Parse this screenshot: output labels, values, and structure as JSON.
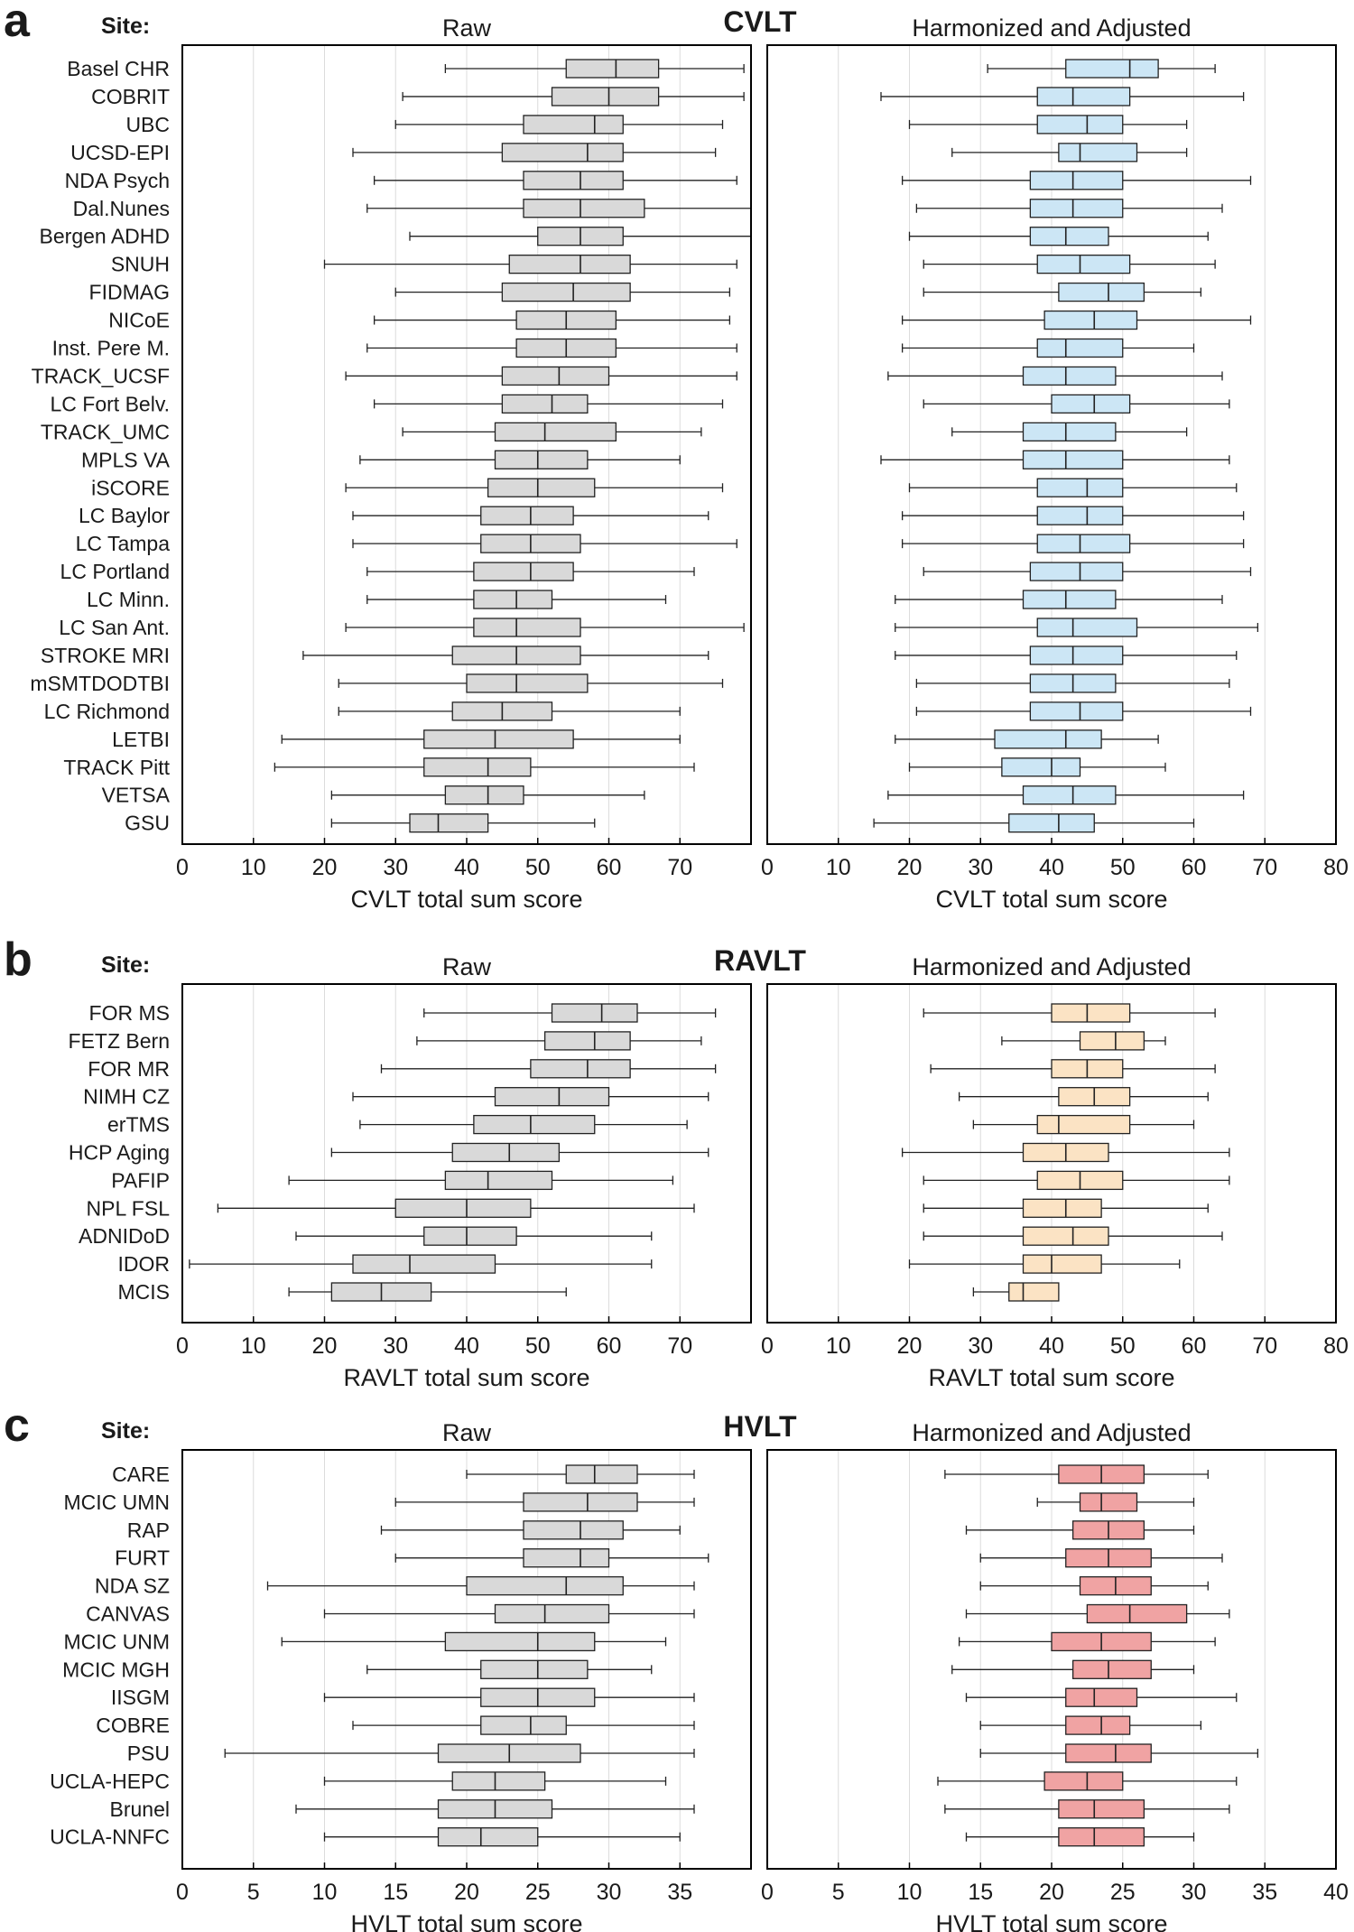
{
  "figure_colors": {
    "raw_fill": "#d9d9d9",
    "cvlt_fill": "#cce6f5",
    "ravlt_fill": "#fbe3c4",
    "hvlt_fill": "#f0a3a3",
    "cvlt_title": "#3b5bb5",
    "ravlt_title": "#f08c24",
    "hvlt_title": "#e03535"
  },
  "chart_data": [
    {
      "type": "boxplot",
      "panel_letter": "a",
      "test_title": "CVLT",
      "site_header": "Site:",
      "left_title": "Raw",
      "right_title": "Harmonized and Adjusted",
      "xlabel": "CVLT total sum score",
      "left_xlim": [
        0,
        80
      ],
      "left_ticks": [
        "0",
        "10",
        "20",
        "30",
        "40",
        "50",
        "60",
        "70"
      ],
      "right_xlim": [
        0,
        80
      ],
      "right_ticks": [
        "0",
        "10",
        "20",
        "30",
        "40",
        "50",
        "60",
        "70",
        "80"
      ],
      "sites": [
        "Basel CHR",
        "COBRIT",
        "UBC",
        "UCSD-EPI",
        "NDA Psych",
        "Dal.Nunes",
        "Bergen ADHD",
        "SNUH",
        "FIDMAG",
        "NICoE",
        "Inst. Pere M.",
        "TRACK_UCSF",
        "LC Fort Belv.",
        "TRACK_UMC",
        "MPLS VA",
        "iSCORE",
        "LC Baylor",
        "LC Tampa",
        "LC Portland",
        "LC Minn.",
        "LC San Ant.",
        "STROKE MRI",
        "mSMTDODTBI",
        "LC Richmond",
        "LETBI",
        "TRACK Pitt",
        "VETSA",
        "GSU"
      ],
      "raw": [
        [
          37,
          54,
          61,
          67,
          79
        ],
        [
          31,
          52,
          60,
          67,
          79
        ],
        [
          30,
          48,
          58,
          62,
          76
        ],
        [
          24,
          45,
          57,
          62,
          75
        ],
        [
          27,
          48,
          56,
          62,
          78
        ],
        [
          26,
          48,
          56,
          65,
          80
        ],
        [
          32,
          50,
          56,
          62,
          80
        ],
        [
          20,
          46,
          56,
          63,
          78
        ],
        [
          30,
          45,
          55,
          63,
          77
        ],
        [
          27,
          47,
          54,
          61,
          77
        ],
        [
          26,
          47,
          54,
          61,
          78
        ],
        [
          23,
          45,
          53,
          60,
          78
        ],
        [
          27,
          45,
          52,
          57,
          76
        ],
        [
          31,
          44,
          51,
          61,
          73
        ],
        [
          25,
          44,
          50,
          57,
          70
        ],
        [
          23,
          43,
          50,
          58,
          76
        ],
        [
          24,
          42,
          49,
          55,
          74
        ],
        [
          24,
          42,
          49,
          56,
          78
        ],
        [
          26,
          41,
          49,
          55,
          72
        ],
        [
          26,
          41,
          47,
          52,
          68
        ],
        [
          23,
          41,
          47,
          56,
          79
        ],
        [
          17,
          38,
          47,
          56,
          74
        ],
        [
          22,
          40,
          47,
          57,
          76
        ],
        [
          22,
          38,
          45,
          52,
          70
        ],
        [
          14,
          34,
          44,
          55,
          70
        ],
        [
          13,
          34,
          43,
          49,
          72
        ],
        [
          21,
          37,
          43,
          48,
          65
        ],
        [
          21,
          32,
          36,
          43,
          58
        ]
      ],
      "harmonized": [
        [
          31,
          42,
          51,
          55,
          63
        ],
        [
          16,
          38,
          43,
          51,
          67
        ],
        [
          20,
          38,
          45,
          50,
          59
        ],
        [
          26,
          41,
          44,
          52,
          59
        ],
        [
          19,
          37,
          43,
          50,
          68
        ],
        [
          21,
          37,
          43,
          50,
          64
        ],
        [
          20,
          37,
          42,
          48,
          62
        ],
        [
          22,
          38,
          44,
          51,
          63
        ],
        [
          22,
          41,
          48,
          53,
          61
        ],
        [
          19,
          39,
          46,
          52,
          68
        ],
        [
          19,
          38,
          42,
          50,
          60
        ],
        [
          17,
          36,
          42,
          49,
          64
        ],
        [
          22,
          40,
          46,
          51,
          65
        ],
        [
          26,
          36,
          42,
          49,
          59
        ],
        [
          16,
          36,
          42,
          50,
          65
        ],
        [
          20,
          38,
          45,
          50,
          66
        ],
        [
          19,
          38,
          45,
          50,
          67
        ],
        [
          19,
          38,
          44,
          51,
          67
        ],
        [
          22,
          37,
          44,
          50,
          68
        ],
        [
          18,
          36,
          42,
          49,
          64
        ],
        [
          18,
          38,
          43,
          52,
          69
        ],
        [
          18,
          37,
          43,
          50,
          66
        ],
        [
          21,
          37,
          43,
          49,
          65
        ],
        [
          21,
          37,
          44,
          50,
          68
        ],
        [
          18,
          32,
          42,
          47,
          55
        ],
        [
          20,
          33,
          40,
          44,
          56
        ],
        [
          17,
          36,
          43,
          49,
          67
        ],
        [
          15,
          34,
          41,
          46,
          60
        ]
      ]
    },
    {
      "type": "boxplot",
      "panel_letter": "b",
      "test_title": "RAVLT",
      "site_header": "Site:",
      "left_title": "Raw",
      "right_title": "Harmonized and Adjusted",
      "xlabel": "RAVLT total sum score",
      "left_xlim": [
        0,
        80
      ],
      "left_ticks": [
        "0",
        "10",
        "20",
        "30",
        "40",
        "50",
        "60",
        "70"
      ],
      "right_xlim": [
        0,
        80
      ],
      "right_ticks": [
        "0",
        "10",
        "20",
        "30",
        "40",
        "50",
        "60",
        "70",
        "80"
      ],
      "sites": [
        "FOR MS",
        "FETZ Bern",
        "FOR MR",
        "NIMH CZ",
        "erTMS",
        "HCP Aging",
        "PAFIP",
        "NPL FSL",
        "ADNIDoD",
        "IDOR",
        "MCIS"
      ],
      "raw": [
        [
          34,
          52,
          59,
          64,
          75
        ],
        [
          33,
          51,
          58,
          63,
          73
        ],
        [
          28,
          49,
          57,
          63,
          75
        ],
        [
          24,
          44,
          53,
          60,
          74
        ],
        [
          25,
          41,
          49,
          58,
          71
        ],
        [
          21,
          38,
          46,
          53,
          74
        ],
        [
          15,
          37,
          43,
          52,
          69
        ],
        [
          5,
          30,
          40,
          49,
          72
        ],
        [
          16,
          34,
          40,
          47,
          66
        ],
        [
          1,
          24,
          32,
          44,
          66
        ],
        [
          15,
          21,
          28,
          35,
          54
        ]
      ],
      "harmonized": [
        [
          22,
          40,
          45,
          51,
          63
        ],
        [
          33,
          44,
          49,
          53,
          56
        ],
        [
          23,
          40,
          45,
          50,
          63
        ],
        [
          27,
          41,
          46,
          51,
          62
        ],
        [
          29,
          38,
          41,
          51,
          60
        ],
        [
          19,
          36,
          42,
          48,
          65
        ],
        [
          22,
          38,
          44,
          50,
          65
        ],
        [
          22,
          36,
          42,
          47,
          62
        ],
        [
          22,
          36,
          43,
          48,
          64
        ],
        [
          20,
          36,
          40,
          47,
          58
        ],
        [
          29,
          34,
          36,
          41,
          41
        ]
      ]
    },
    {
      "type": "boxplot",
      "panel_letter": "c",
      "test_title": "HVLT",
      "site_header": "Site:",
      "left_title": "Raw",
      "right_title": "Harmonized and Adjusted",
      "xlabel": "HVLT total sum score",
      "left_xlim": [
        0,
        40
      ],
      "left_ticks": [
        "0",
        "5",
        "10",
        "15",
        "20",
        "25",
        "30",
        "35"
      ],
      "right_xlim": [
        0,
        40
      ],
      "right_ticks": [
        "0",
        "5",
        "10",
        "15",
        "20",
        "25",
        "30",
        "35",
        "40"
      ],
      "sites": [
        "CARE",
        "MCIC UMN",
        "RAP",
        "FURT",
        "NDA SZ",
        "CANVAS",
        "MCIC UNM",
        "MCIC MGH",
        "IISGM",
        "COBRE",
        "PSU",
        "UCLA-HEPC",
        "Brunel",
        "UCLA-NNFC"
      ],
      "raw": [
        [
          20,
          27,
          29,
          32,
          36
        ],
        [
          15,
          24,
          28.5,
          32,
          36
        ],
        [
          14,
          24,
          28,
          31,
          35
        ],
        [
          15,
          24,
          28,
          30,
          37
        ],
        [
          6,
          20,
          27,
          31,
          36
        ],
        [
          10,
          22,
          25.5,
          30,
          36
        ],
        [
          7,
          18.5,
          25,
          29,
          34
        ],
        [
          13,
          21,
          25,
          28.5,
          33
        ],
        [
          10,
          21,
          25,
          29,
          36
        ],
        [
          12,
          21,
          24.5,
          27,
          36
        ],
        [
          3,
          18,
          23,
          28,
          36
        ],
        [
          10,
          19,
          22,
          25.5,
          34
        ],
        [
          8,
          18,
          22,
          26,
          36
        ],
        [
          10,
          18,
          21,
          25,
          35
        ]
      ],
      "harmonized": [
        [
          12.5,
          20.5,
          23.5,
          26.5,
          31
        ],
        [
          19,
          22,
          23.5,
          26,
          30
        ],
        [
          14,
          21.5,
          24,
          26.5,
          30
        ],
        [
          15,
          21,
          24,
          27,
          32
        ],
        [
          15,
          22,
          24.5,
          27,
          31
        ],
        [
          14,
          22.5,
          25.5,
          29.5,
          32.5
        ],
        [
          13.5,
          20,
          23.5,
          27,
          31.5
        ],
        [
          13,
          21.5,
          24,
          27,
          30
        ],
        [
          14,
          21,
          23,
          26,
          33
        ],
        [
          15,
          21,
          23.5,
          25.5,
          30.5
        ],
        [
          15,
          21,
          24.5,
          27,
          34.5
        ],
        [
          12,
          19.5,
          22.5,
          25,
          33
        ],
        [
          12.5,
          20.5,
          23,
          26.5,
          32.5
        ],
        [
          14,
          20.5,
          23,
          26.5,
          30
        ]
      ]
    }
  ]
}
